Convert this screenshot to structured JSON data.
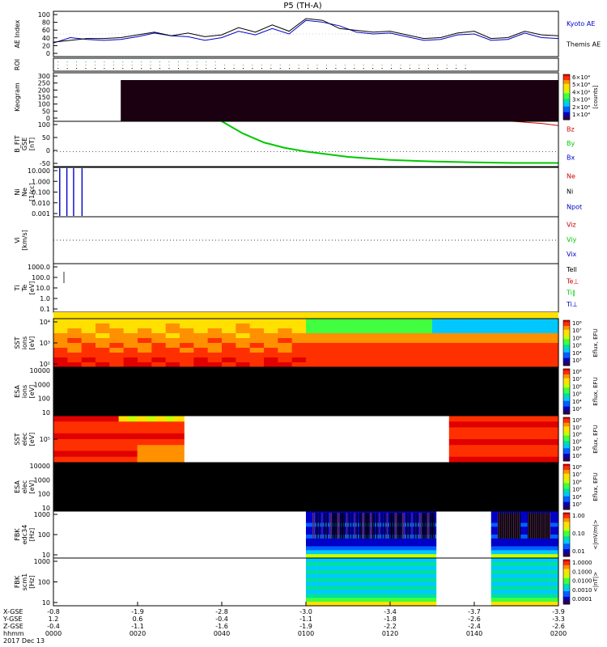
{
  "title": "P5 (TH-A)",
  "colors": {
    "black": "#000000",
    "red": "#d00000",
    "green": "#00c800",
    "blue": "#0000c8",
    "dark": "#1a0010",
    "white": "#ffffff"
  },
  "spectral_scale": [
    "#2b0050",
    "#0000c8",
    "#0060ff",
    "#00c8ff",
    "#00e0a0",
    "#40ff40",
    "#c8ff00",
    "#ffe000",
    "#ff9000",
    "#ff3000",
    "#e00000"
  ],
  "time_axis": {
    "ticks": [
      "0000",
      "0020",
      "0040",
      "0100",
      "0120",
      "0140",
      "0200"
    ],
    "x_gse": [
      "-0.8",
      "-1.9",
      "-2.8",
      "-3.0",
      "-3.4",
      "-3.7",
      "-3.9"
    ],
    "y_gse": [
      "1.2",
      "0.6",
      "-0.4",
      "-1.1",
      "-1.8",
      "-2.6",
      "-3.3"
    ],
    "z_gse": [
      "-0.4",
      "-1.1",
      "-1.6",
      "-1.9",
      "-2.2",
      "-2.4",
      "-2.6"
    ],
    "row_labels": [
      "X-GSE",
      "Y-GSE",
      "Z-GSE",
      "hhmm",
      "2017 Dec 13"
    ]
  },
  "panels": [
    {
      "id": "ae",
      "ylabel": [
        "AE Index"
      ],
      "ticks": [
        "100",
        "80",
        "60",
        "40",
        "20",
        "0"
      ],
      "legend": [
        {
          "text": "Kyoto AE",
          "color": "#0000c8"
        },
        {
          "text": "Themis AE",
          "color": "#000000"
        }
      ]
    },
    {
      "id": "roi",
      "ylabel": [
        "ROI"
      ],
      "ticks": [],
      "legend": []
    },
    {
      "id": "keogram",
      "ylabel": [
        "Keogram"
      ],
      "ticks": [
        "300",
        "250",
        "200",
        "150",
        "100",
        "50",
        "0"
      ],
      "legend": [],
      "colorbar": {
        "labels": [
          "6×10⁴",
          "5×10⁴",
          "4×10⁴",
          "3×10⁴",
          "2×10⁴",
          "1×10⁴"
        ],
        "title": "[counts]"
      }
    },
    {
      "id": "bfield",
      "ylabel": [
        "B_FIT",
        "GSE",
        "[nT]"
      ],
      "ticks": [
        "100",
        "50",
        "0",
        "-50"
      ],
      "legend": [
        {
          "text": "Bz",
          "color": "#d00000"
        },
        {
          "text": "By",
          "color": "#00c800"
        },
        {
          "text": "Bx",
          "color": "#0000c8"
        }
      ]
    },
    {
      "id": "density",
      "ylabel": [
        "Ni",
        "Ne",
        "[1/cc]"
      ],
      "ticks": [
        "10.000",
        "1.000",
        "0.100",
        "0.010",
        "0.001"
      ],
      "legend": [
        {
          "text": "Ne",
          "color": "#d00000"
        },
        {
          "text": "Ni",
          "color": "#000000"
        },
        {
          "text": "Npot",
          "color": "#0000c8"
        }
      ]
    },
    {
      "id": "velocity",
      "ylabel": [
        "Vi",
        "[km/s]"
      ],
      "ticks": [],
      "legend": [
        {
          "text": "Viz",
          "color": "#d00000"
        },
        {
          "text": "Viy",
          "color": "#00c800"
        },
        {
          "text": "Vix",
          "color": "#0000c8"
        }
      ]
    },
    {
      "id": "temperature",
      "ylabel": [
        "Ti",
        "Te",
        "[eV]"
      ],
      "ticks": [
        "1000.0",
        "100.0",
        "10.0",
        "1.0",
        "0.1"
      ],
      "legend": [
        {
          "text": "Tell",
          "color": "#000000"
        },
        {
          "text": "Te⊥",
          "color": "#d00000"
        },
        {
          "text": "Ti∥",
          "color": "#00c800"
        },
        {
          "text": "Ti⊥",
          "color": "#0000c8"
        }
      ]
    },
    {
      "id": "sst_i",
      "ylabel": [
        "SST",
        "ions",
        "[eV]"
      ],
      "ticks": [
        "10⁴",
        "10³",
        "10²"
      ],
      "legend": [],
      "colorbar": {
        "labels": [
          "10⁸",
          "10⁷",
          "10⁶",
          "10⁵",
          "10⁴",
          "10³"
        ],
        "title": "Eflux, EFU"
      }
    },
    {
      "id": "esa_i",
      "ylabel": [
        "ESA",
        "ions",
        "[eV]"
      ],
      "ticks": [
        "10000",
        "1000",
        "100",
        "10"
      ],
      "legend": [],
      "colorbar": {
        "labels": [
          "10⁸",
          "10⁷",
          "10⁶",
          "10⁵",
          "10⁴",
          "10³"
        ],
        "title": "Eflux, EFU"
      }
    },
    {
      "id": "sst_e",
      "ylabel": [
        "SST",
        "elec",
        "[eV]"
      ],
      "ticks": [
        "10⁵"
      ],
      "legend": [],
      "colorbar": {
        "labels": [
          "10⁸",
          "10⁷",
          "10⁶",
          "10⁵",
          "10⁴",
          "10³"
        ],
        "title": "Eflux, EFU"
      }
    },
    {
      "id": "esa_e",
      "ylabel": [
        "ESA",
        "elec",
        "[eV]"
      ],
      "ticks": [
        "10000",
        "1000",
        "100",
        "10"
      ],
      "legend": [],
      "colorbar": {
        "labels": [
          "10⁸",
          "10⁷",
          "10⁶",
          "10⁵",
          "10⁴",
          "10³"
        ],
        "title": "Eflux, EFU"
      }
    },
    {
      "id": "fbk_e",
      "ylabel": [
        "FBK",
        "edc34",
        "[Hz]"
      ],
      "ticks": [
        "1000",
        "100",
        "10"
      ],
      "legend": [],
      "colorbar": {
        "labels": [
          "1.00",
          "0.10",
          "0.01"
        ],
        "title": "<|mV/m|>"
      }
    },
    {
      "id": "fbk_b",
      "ylabel": [
        "FBK",
        "scm1",
        "[Hz]"
      ],
      "ticks": [
        "1000",
        "100",
        "10"
      ],
      "legend": [],
      "colorbar": {
        "labels": [
          "1.0000",
          "0.1000",
          "0.0100",
          "0.0010",
          "0.0001"
        ],
        "title": "<|nT|>"
      }
    }
  ],
  "chart_data": {
    "type": "line",
    "title": "P5 (TH-A)",
    "x_range": [
      "0000",
      "0200"
    ],
    "ae": {
      "ylim": [
        0,
        100
      ],
      "x_minutes": [
        0,
        4,
        8,
        12,
        16,
        20,
        24,
        28,
        32,
        36,
        40,
        44,
        48,
        52,
        56,
        60,
        64,
        68,
        72,
        76,
        80,
        84,
        88,
        92,
        96,
        100,
        104,
        108,
        112,
        116,
        120
      ],
      "series": [
        {
          "name": "Kyoto AE",
          "values": [
            30,
            42,
            38,
            36,
            38,
            44,
            52,
            46,
            44,
            36,
            42,
            56,
            48,
            62,
            50,
            80,
            76,
            68,
            54,
            50,
            52,
            44,
            36,
            38,
            48,
            50,
            36,
            38,
            52,
            42,
            40
          ]
        },
        {
          "name": "Themis AE",
          "values": [
            32,
            36,
            40,
            40,
            42,
            48,
            54,
            46,
            52,
            44,
            48,
            64,
            54,
            70,
            56,
            84,
            80,
            62,
            58,
            54,
            56,
            48,
            40,
            42,
            52,
            56,
            40,
            42,
            56,
            48,
            46
          ]
        }
      ]
    },
    "bfield": {
      "ylim": [
        -50,
        100
      ],
      "series": [
        {
          "name": "By",
          "x_minutes": [
            40,
            45,
            50,
            55,
            60,
            70,
            80,
            90,
            100,
            110,
            120
          ],
          "values": [
            100,
            60,
            30,
            12,
            0,
            -18,
            -28,
            -33,
            -36,
            -38,
            -38
          ]
        },
        {
          "name": "Bz",
          "x_minutes": [
            109,
            113,
            116,
            120
          ],
          "values": [
            100,
            96,
            93,
            86
          ]
        }
      ]
    },
    "keogram": {
      "ylim": [
        0,
        300
      ],
      "coverage_start_minute": 16
    },
    "fbk_coverage_minutes": [
      [
        60,
        91
      ],
      [
        104,
        120
      ]
    ]
  }
}
